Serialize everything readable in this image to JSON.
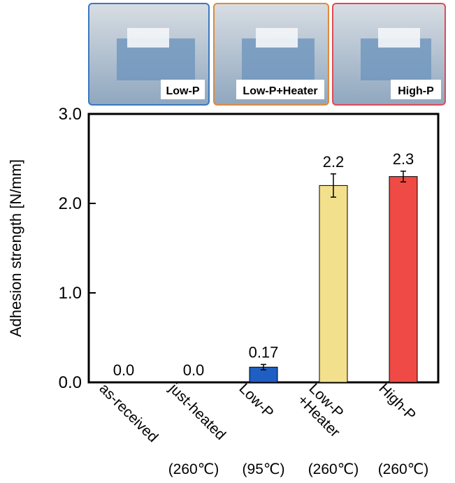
{
  "chart_data": {
    "type": "bar",
    "y_label": "Adhesion strength [N/mm]",
    "categories": [
      "as-received",
      "just-heated",
      "Low-P",
      "Low-P\n+Heater",
      "High-P"
    ],
    "sublabels": [
      null,
      "(260℃)",
      "(95℃)",
      "(260℃)",
      "(260℃)"
    ],
    "values": [
      0,
      0,
      0.17,
      2.2,
      2.3
    ],
    "value_labels": [
      "0.0",
      "0.0",
      "0.17",
      "2.2",
      "2.3"
    ],
    "errors": [
      0,
      0,
      0.03,
      0.13,
      0.06
    ],
    "colors": [
      "#ffffff",
      "#ffffff",
      "#1f5fc4",
      "#f3e08c",
      "#ef4a45"
    ],
    "ylim": [
      0,
      3
    ],
    "yticks": [
      {
        "value": 0,
        "label": "0.0"
      },
      {
        "value": 1,
        "label": "1.0"
      },
      {
        "value": 2,
        "label": "2.0"
      },
      {
        "value": 3,
        "label": "3.0"
      }
    ],
    "photos": [
      {
        "label": "Low-P",
        "color": "#3a78c0"
      },
      {
        "label": "Low-P+Heater",
        "color": "#e08a3c"
      },
      {
        "label": "High-P",
        "color": "#e04a55"
      }
    ]
  }
}
